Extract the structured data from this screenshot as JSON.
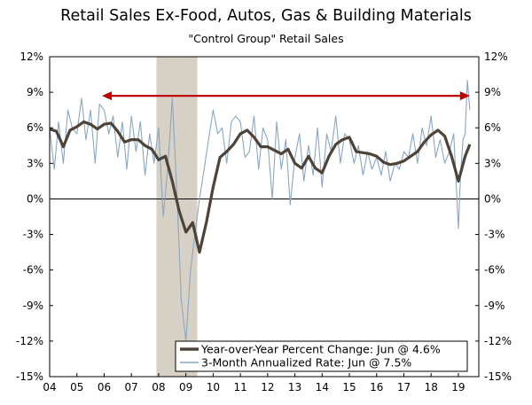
{
  "chart_data": {
    "type": "line",
    "title": "Retail Sales Ex-Food, Autos, Gas & Building Materials",
    "subtitle": "\"Control Group\" Retail Sales",
    "ylim": [
      -15,
      12
    ],
    "yticks": [
      "12%",
      "9%",
      "6%",
      "3%",
      "0%",
      "-3%",
      "-6%",
      "-9%",
      "-12%",
      "-15%"
    ],
    "xticks": [
      "04",
      "05",
      "06",
      "07",
      "08",
      "09",
      "10",
      "11",
      "12",
      "13",
      "14",
      "15",
      "16",
      "17",
      "18",
      "19"
    ],
    "xlim": [
      2004.0,
      2019.75
    ],
    "recession": {
      "start": 2007.92,
      "end": 2009.42
    },
    "reference_arrow": {
      "x_start": 2005.92,
      "x_end": 2019.42,
      "y": 8.7,
      "color": "#c00000"
    },
    "colors": {
      "yoy": "#4d4339",
      "ann": "#8aa6c1",
      "recession": "#d6d1c4"
    },
    "legend": {
      "position": "bottom-right"
    },
    "series": [
      {
        "name": "Year-over-Year Percent Change: Jun @ 4.6%",
        "x": [
          2004.0,
          2004.25,
          2004.5,
          2004.75,
          2005.0,
          2005.25,
          2005.5,
          2005.75,
          2006.0,
          2006.25,
          2006.5,
          2006.75,
          2007.0,
          2007.25,
          2007.5,
          2007.75,
          2008.0,
          2008.25,
          2008.5,
          2008.75,
          2009.0,
          2009.25,
          2009.5,
          2009.75,
          2010.0,
          2010.25,
          2010.5,
          2010.75,
          2011.0,
          2011.25,
          2011.5,
          2011.75,
          2012.0,
          2012.25,
          2012.5,
          2012.75,
          2013.0,
          2013.25,
          2013.5,
          2013.75,
          2014.0,
          2014.25,
          2014.5,
          2014.75,
          2015.0,
          2015.25,
          2015.5,
          2015.75,
          2016.0,
          2016.25,
          2016.5,
          2016.75,
          2017.0,
          2017.25,
          2017.5,
          2017.75,
          2018.0,
          2018.25,
          2018.5,
          2018.75,
          2019.0,
          2019.25,
          2019.42
        ],
        "values": [
          5.9,
          5.7,
          4.4,
          5.8,
          6.1,
          6.5,
          6.3,
          5.9,
          6.3,
          6.4,
          5.7,
          4.8,
          5.0,
          5.0,
          4.5,
          4.2,
          3.3,
          3.6,
          1.5,
          -1.0,
          -2.8,
          -2.0,
          -4.5,
          -2.0,
          1.0,
          3.5,
          4.0,
          4.6,
          5.5,
          5.8,
          5.2,
          4.4,
          4.4,
          4.1,
          3.8,
          4.2,
          3.0,
          2.6,
          3.6,
          2.6,
          2.2,
          3.6,
          4.6,
          5.0,
          5.2,
          4.0,
          3.9,
          3.8,
          3.6,
          3.1,
          2.9,
          3.0,
          3.2,
          3.6,
          4.0,
          4.8,
          5.4,
          5.8,
          5.3,
          3.6,
          1.5,
          3.6,
          4.6
        ]
      },
      {
        "name": "3-Month Annualized Rate: Jun @ 7.5%",
        "x": [
          2004.0,
          2004.17,
          2004.33,
          2004.5,
          2004.67,
          2004.83,
          2005.0,
          2005.17,
          2005.33,
          2005.5,
          2005.67,
          2005.83,
          2006.0,
          2006.17,
          2006.33,
          2006.5,
          2006.67,
          2006.83,
          2007.0,
          2007.17,
          2007.33,
          2007.5,
          2007.67,
          2007.83,
          2008.0,
          2008.17,
          2008.33,
          2008.5,
          2008.67,
          2008.83,
          2009.0,
          2009.17,
          2009.33,
          2009.5,
          2009.67,
          2009.83,
          2010.0,
          2010.17,
          2010.33,
          2010.5,
          2010.67,
          2010.83,
          2011.0,
          2011.17,
          2011.33,
          2011.5,
          2011.67,
          2011.83,
          2012.0,
          2012.17,
          2012.33,
          2012.5,
          2012.67,
          2012.83,
          2013.0,
          2013.17,
          2013.33,
          2013.5,
          2013.67,
          2013.83,
          2014.0,
          2014.17,
          2014.33,
          2014.5,
          2014.67,
          2014.83,
          2015.0,
          2015.17,
          2015.33,
          2015.5,
          2015.67,
          2015.83,
          2016.0,
          2016.17,
          2016.33,
          2016.5,
          2016.67,
          2016.83,
          2017.0,
          2017.17,
          2017.33,
          2017.5,
          2017.67,
          2017.83,
          2018.0,
          2018.17,
          2018.33,
          2018.5,
          2018.67,
          2018.83,
          2019.0,
          2019.08,
          2019.17,
          2019.25,
          2019.33,
          2019.42
        ],
        "values": [
          6.0,
          2.5,
          6.5,
          3.0,
          7.5,
          6.0,
          5.5,
          8.5,
          5.0,
          7.5,
          3.0,
          8.0,
          7.5,
          5.5,
          7.0,
          3.5,
          6.5,
          2.5,
          7.0,
          4.0,
          6.5,
          2.0,
          5.5,
          3.0,
          6.0,
          -1.5,
          2.5,
          8.5,
          0.5,
          -8.5,
          -12.0,
          -6.0,
          -3.0,
          0.0,
          2.5,
          5.0,
          7.5,
          5.5,
          6.0,
          3.0,
          6.5,
          7.0,
          6.5,
          3.5,
          4.0,
          7.0,
          2.5,
          6.0,
          5.0,
          0.0,
          6.5,
          2.5,
          5.0,
          -0.5,
          3.5,
          5.5,
          1.5,
          4.5,
          2.0,
          6.0,
          1.0,
          5.5,
          4.0,
          7.0,
          3.0,
          5.5,
          5.0,
          3.0,
          4.5,
          2.0,
          4.0,
          2.5,
          3.5,
          2.0,
          4.0,
          1.5,
          3.0,
          2.5,
          4.0,
          3.5,
          5.5,
          3.0,
          6.0,
          4.5,
          7.0,
          3.5,
          5.0,
          3.0,
          4.0,
          5.5,
          -2.5,
          2.0,
          5.0,
          5.5,
          10.0,
          7.5
        ]
      }
    ]
  }
}
